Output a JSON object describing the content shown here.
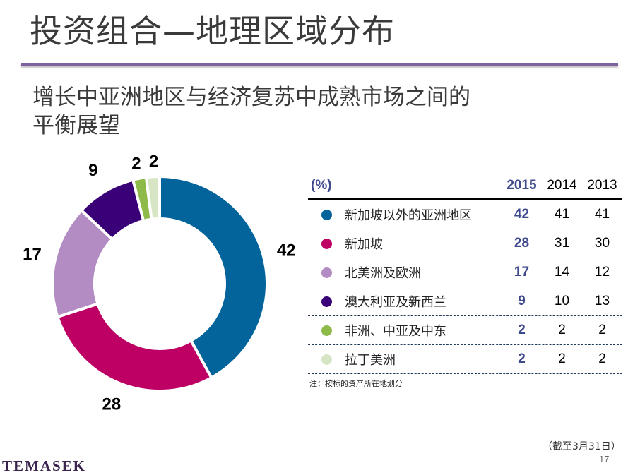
{
  "title": "投资组合—地理区域分布",
  "subtitle": {
    "line1": "增长中亚洲地区与经济复苏中成熟市场之间的",
    "line2": "平衡展望"
  },
  "chart_data": {
    "type": "pie",
    "variant": "donut",
    "title": "",
    "start": "12 o'clock, clockwise",
    "categories": [
      "新加坡以外的亚洲地区",
      "新加坡",
      "北美洲及欧洲",
      "澳大利亚及新西兰",
      "非洲、中亚及中东",
      "拉丁美洲"
    ],
    "values": [
      42,
      28,
      17,
      9,
      2,
      2
    ],
    "data_labels": [
      "42",
      "28",
      "17",
      "9",
      "2",
      "2"
    ],
    "colors": [
      "#02649b",
      "#be0064",
      "#b28cc2",
      "#3a0078",
      "#8dba49",
      "#d6e6c4"
    ],
    "unit": "%"
  },
  "table": {
    "unit_label": "(%)",
    "years": [
      "2015",
      "2014",
      "2013"
    ],
    "rows": [
      {
        "name": "新加坡以外的亚洲地区",
        "color": "#02649b",
        "values": [
          "42",
          "41",
          "41"
        ]
      },
      {
        "name": "新加坡",
        "color": "#be0064",
        "values": [
          "28",
          "31",
          "30"
        ]
      },
      {
        "name": "北美洲及欧洲",
        "color": "#b28cc2",
        "values": [
          "17",
          "14",
          "12"
        ]
      },
      {
        "name": "澳大利亚及新西兰",
        "color": "#3a0078",
        "values": [
          "9",
          "10",
          "13"
        ]
      },
      {
        "name": "非洲、中亚及中东",
        "color": "#8dba49",
        "values": [
          "2",
          "2",
          "2"
        ]
      },
      {
        "name": "拉丁美洲",
        "color": "#d6e6c4",
        "values": [
          "2",
          "2",
          "2"
        ]
      }
    ],
    "note": "注：按标的资产所在地划分"
  },
  "footer": {
    "as_of": "（截至3月31日）",
    "page_number": "17",
    "logo": "TEMASEK"
  }
}
